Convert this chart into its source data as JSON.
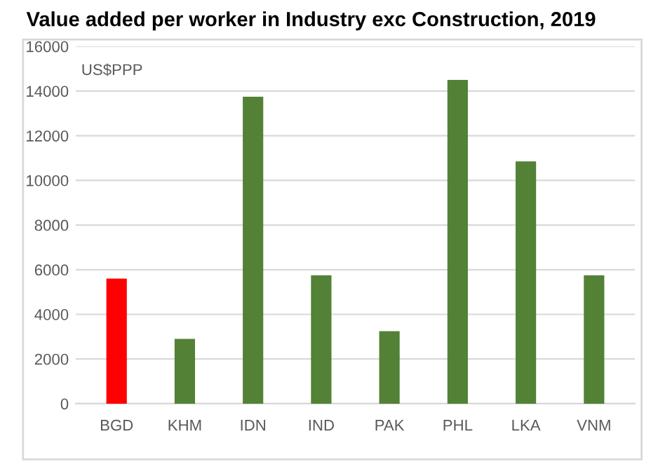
{
  "chart_data": {
    "type": "bar",
    "title": "Value added per worker in Industry exc Construction, 2019",
    "ylabel": "US$PPP",
    "categories": [
      "BGD",
      "KHM",
      "IDN",
      "IND",
      "PAK",
      "PHL",
      "LKA",
      "VNM"
    ],
    "values": [
      5600,
      2900,
      13750,
      5750,
      3250,
      14500,
      10850,
      5750
    ],
    "colors": [
      "#ff0000",
      "#538135",
      "#538135",
      "#538135",
      "#538135",
      "#538135",
      "#538135",
      "#538135"
    ],
    "ylim": [
      0,
      16000
    ],
    "yticks": [
      0,
      2000,
      4000,
      6000,
      8000,
      10000,
      12000,
      14000,
      16000
    ],
    "grid": "y",
    "legend": false
  }
}
